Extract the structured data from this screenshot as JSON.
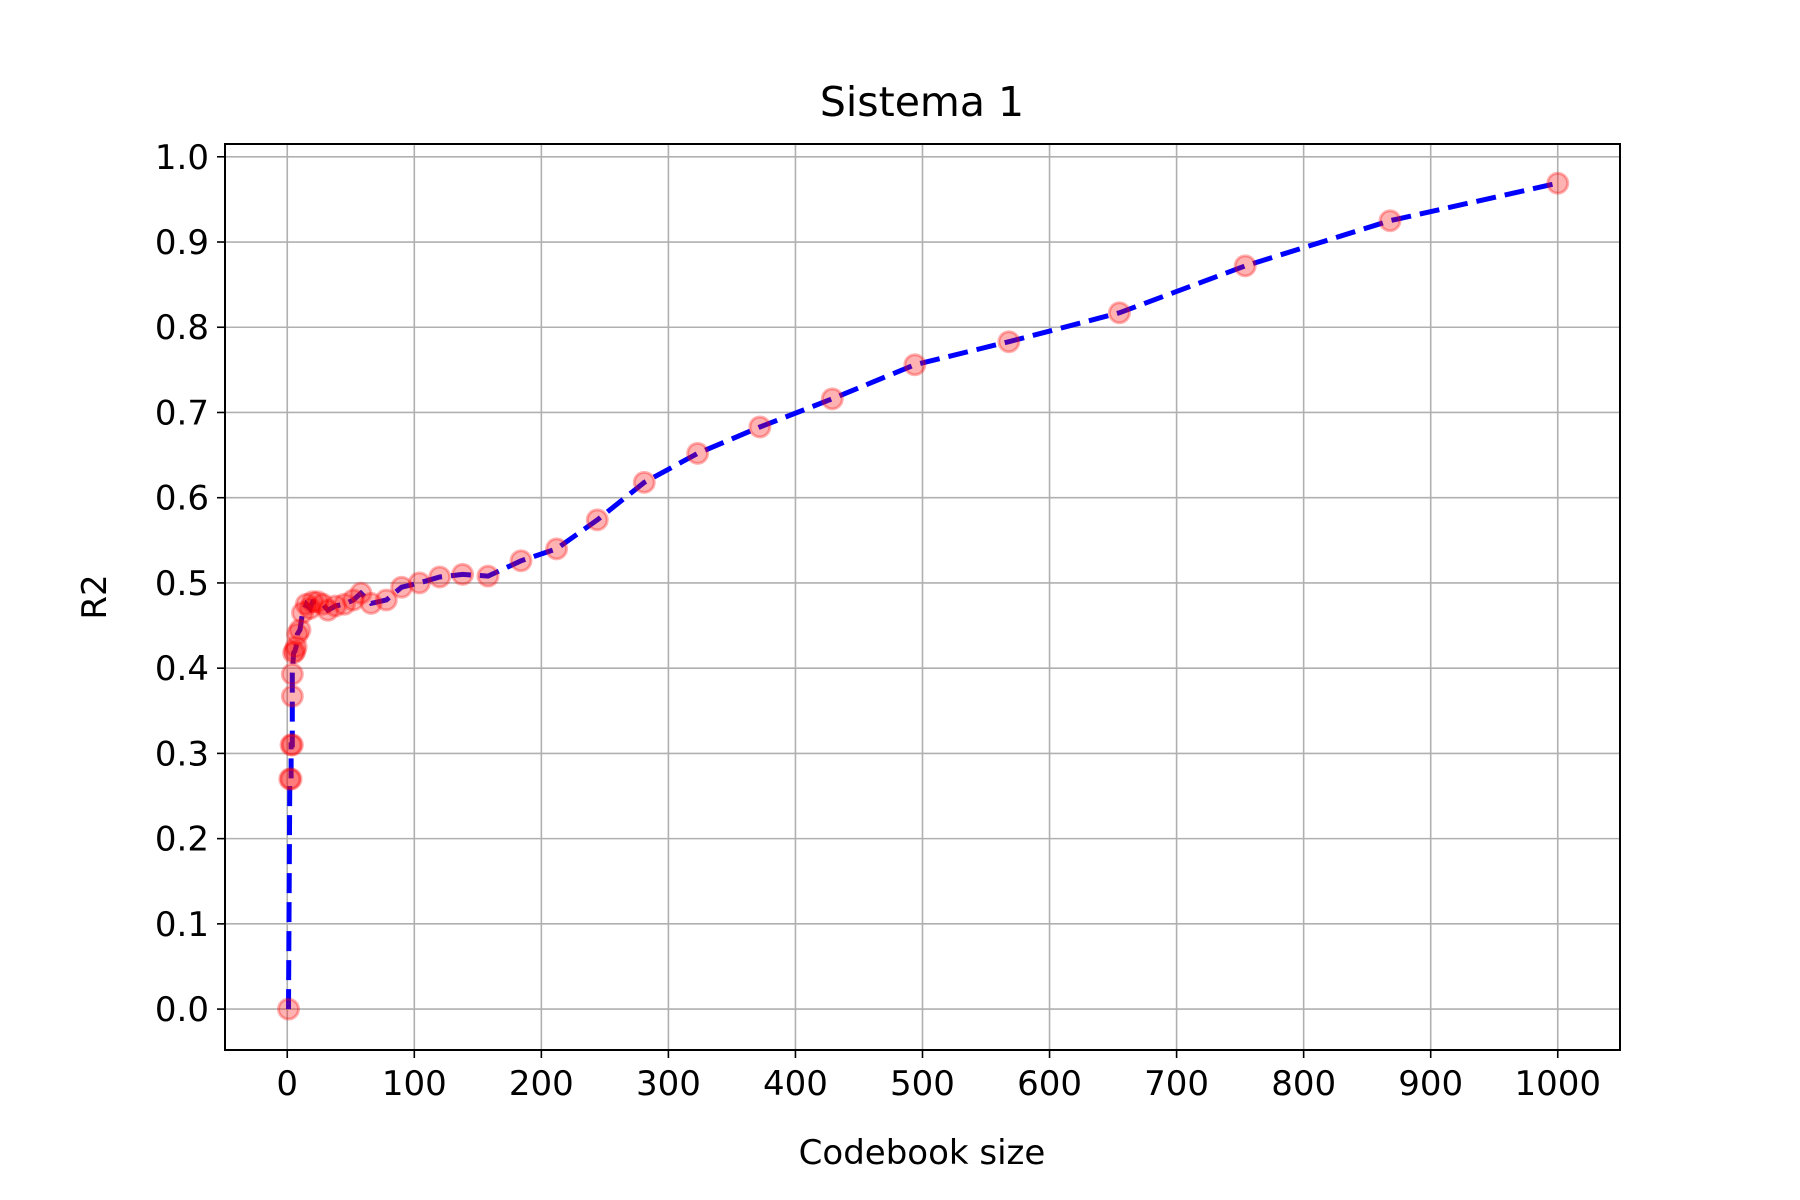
{
  "chart_data": {
    "type": "line",
    "title": "Sistema 1",
    "xlabel": "Codebook size",
    "ylabel": "R2",
    "xlim": [
      -49,
      1049
    ],
    "ylim": [
      -0.048,
      1.015
    ],
    "xticks": [
      0,
      100,
      200,
      300,
      400,
      500,
      600,
      700,
      800,
      900,
      1000
    ],
    "xtick_labels": [
      "0",
      "100",
      "200",
      "300",
      "400",
      "500",
      "600",
      "700",
      "800",
      "900",
      "1000"
    ],
    "yticks": [
      0.0,
      0.1,
      0.2,
      0.3,
      0.4,
      0.5,
      0.6,
      0.7,
      0.8,
      0.9,
      1.0
    ],
    "ytick_labels": [
      "0.0",
      "0.1",
      "0.2",
      "0.3",
      "0.4",
      "0.5",
      "0.6",
      "0.7",
      "0.8",
      "0.9",
      "1.0"
    ],
    "grid": true,
    "line_color": "#0000ff",
    "line_style": "dashed",
    "marker_color": "#ff0000",
    "series": [
      {
        "points": [
          [
            1,
            0.0
          ],
          [
            2,
            0.27
          ],
          [
            3,
            0.27
          ],
          [
            3,
            0.31
          ],
          [
            4,
            0.31
          ],
          [
            4,
            0.367
          ],
          [
            4,
            0.393
          ],
          [
            5,
            0.418
          ],
          [
            6,
            0.42
          ],
          [
            7,
            0.425
          ],
          [
            8,
            0.44
          ],
          [
            10,
            0.445
          ],
          [
            12,
            0.465
          ],
          [
            15,
            0.475
          ],
          [
            18,
            0.47
          ],
          [
            20,
            0.478
          ],
          [
            24,
            0.478
          ],
          [
            28,
            0.475
          ],
          [
            32,
            0.468
          ],
          [
            38,
            0.473
          ],
          [
            45,
            0.475
          ],
          [
            52,
            0.48
          ],
          [
            58,
            0.488
          ],
          [
            66,
            0.476
          ],
          [
            78,
            0.48
          ],
          [
            90,
            0.495
          ],
          [
            104,
            0.5
          ],
          [
            120,
            0.507
          ],
          [
            138,
            0.51
          ],
          [
            158,
            0.508
          ],
          [
            184,
            0.526
          ],
          [
            212,
            0.54
          ],
          [
            244,
            0.574
          ],
          [
            281,
            0.618
          ],
          [
            323,
            0.652
          ],
          [
            372,
            0.683
          ],
          [
            429,
            0.716
          ],
          [
            494,
            0.756
          ],
          [
            568,
            0.783
          ],
          [
            655,
            0.817
          ],
          [
            754,
            0.872
          ],
          [
            868,
            0.925
          ],
          [
            1000,
            0.969
          ]
        ]
      }
    ]
  }
}
